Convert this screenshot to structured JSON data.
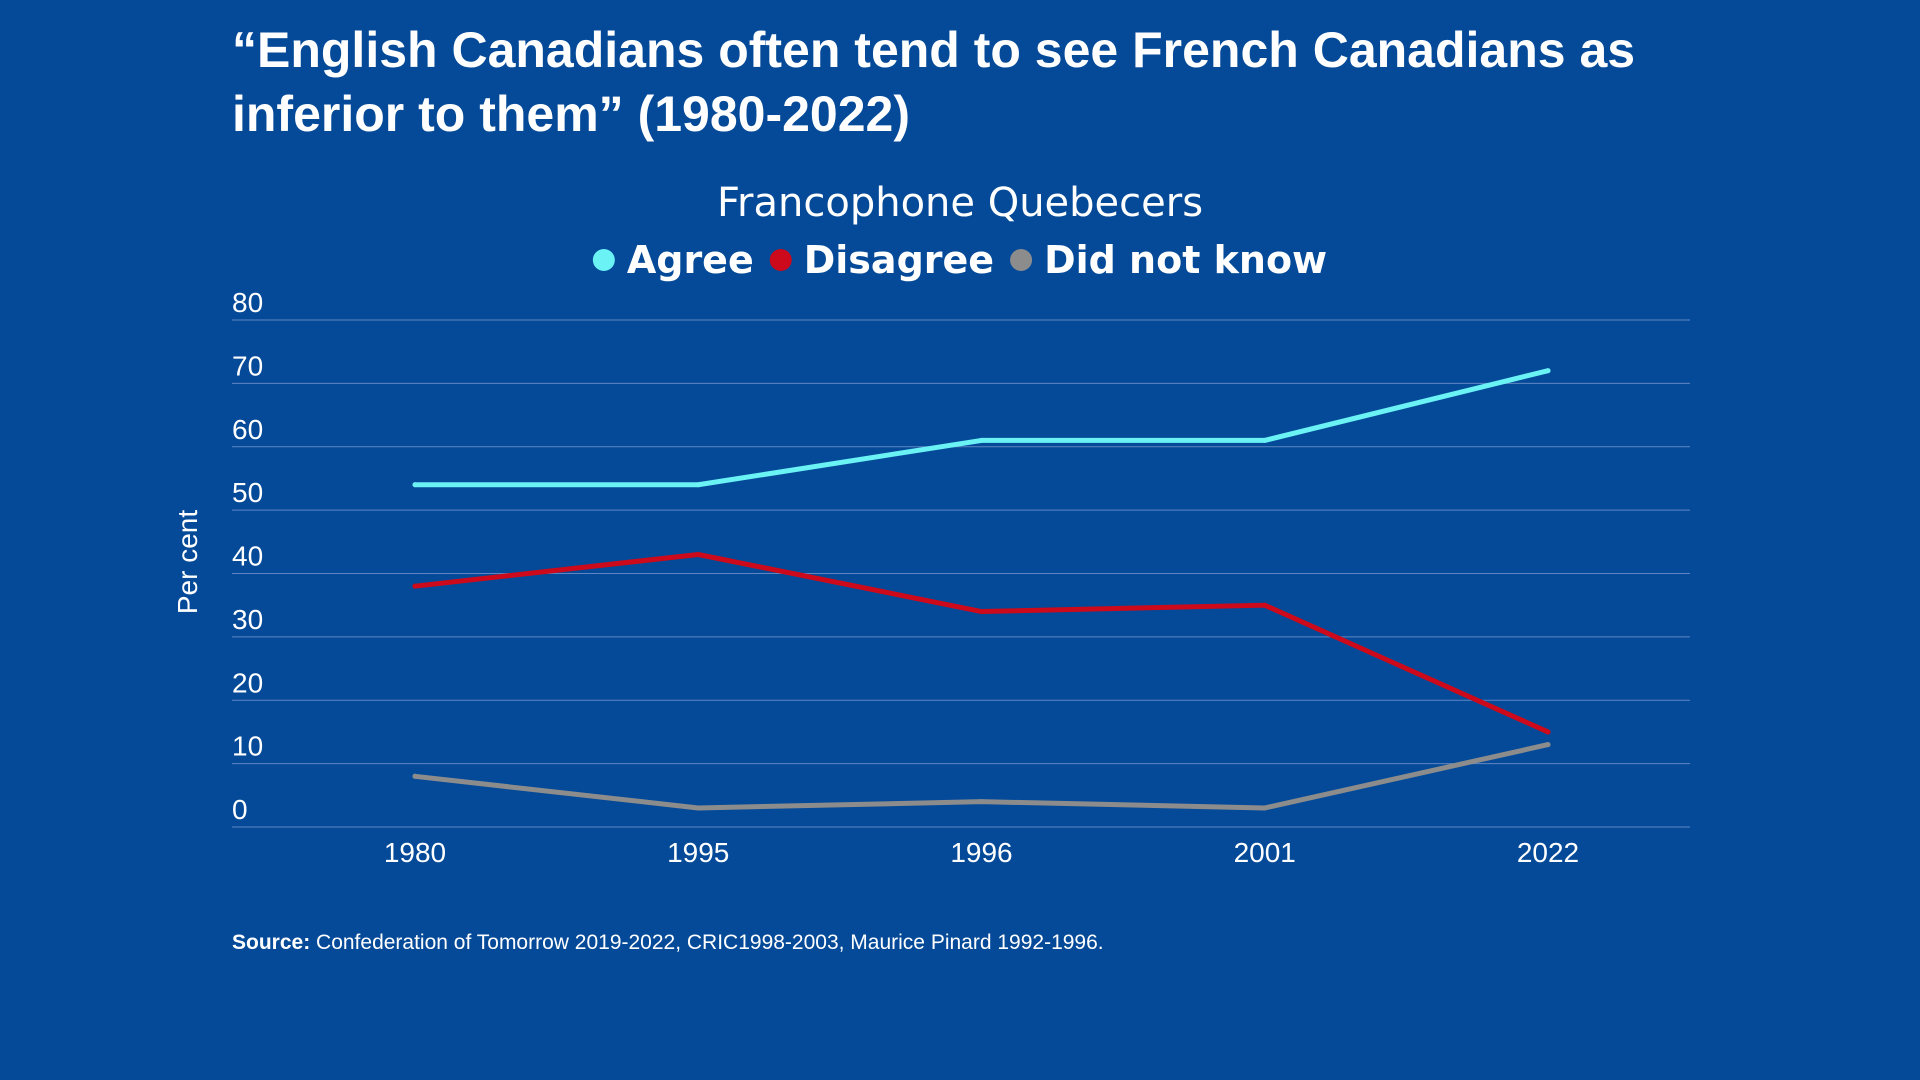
{
  "title": "“English Canadians often tend to see French Canadians as inferior to them” (1980-2022)",
  "source": {
    "label": "Source:",
    "text": "Confederation of Tomorrow 2019-2022, CRIC1998-2003, Maurice Pinard 1992-1996."
  },
  "chart_data": {
    "type": "line",
    "title": "Francophone Quebecers",
    "xlabel": "",
    "ylabel": "Per cent",
    "categories": [
      "1980",
      "1995",
      "1996",
      "2001",
      "2022"
    ],
    "yticks": [
      "0",
      "10",
      "20",
      "30",
      "40",
      "50",
      "60",
      "70",
      "80"
    ],
    "ylim": [
      0,
      80
    ],
    "grid": true,
    "legend_position": "top-center",
    "series": [
      {
        "name": "Agree",
        "color": "#6af2f5",
        "values": [
          54,
          54,
          61,
          61,
          72
        ]
      },
      {
        "name": "Disagree",
        "color": "#cc0a1b",
        "values": [
          38,
          43,
          34,
          35,
          15
        ]
      },
      {
        "name": "Did not know",
        "color": "#8c8c8c",
        "values": [
          8,
          3,
          4,
          3,
          13
        ]
      }
    ]
  }
}
